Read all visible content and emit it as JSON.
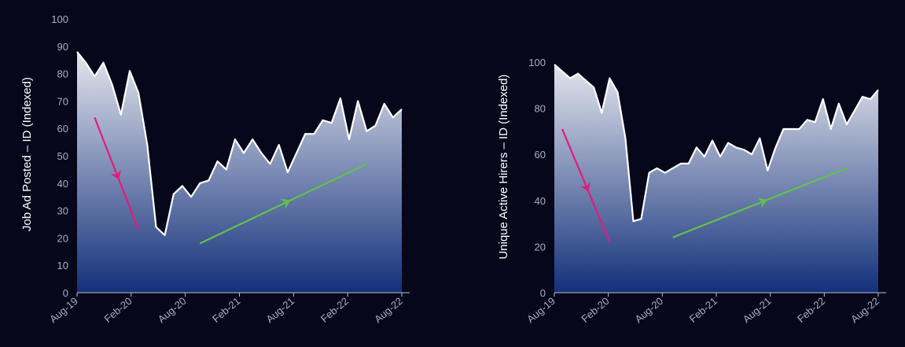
{
  "colors": {
    "background": "#06071a",
    "area_top": "#e4e6ee",
    "area_bottom": "#12307a",
    "line": "#ffffff",
    "axis": "#b9bdd4",
    "tick_text": "#a9aec8",
    "down_arrow": "#e8197a",
    "up_arrow": "#5fc24a"
  },
  "chart_data": [
    {
      "type": "area",
      "ylabel": "Job Ad Posted – ID (Indexed)",
      "xlabel": "",
      "ylim": [
        0,
        100
      ],
      "y_ticks": [
        0,
        10,
        20,
        30,
        40,
        50,
        60,
        70,
        80,
        90,
        100
      ],
      "x_tick_labels": [
        "Aug-19",
        "Feb-20",
        "Aug-20",
        "Feb-21",
        "Aug-21",
        "Feb-22",
        "Aug-22"
      ],
      "grid": false,
      "legend": "none",
      "values": [
        88,
        84,
        79,
        84,
        76,
        65,
        81,
        73,
        54,
        24,
        21,
        36,
        39,
        35,
        40,
        41,
        48,
        45,
        56,
        51,
        56,
        51,
        47,
        54,
        44,
        51,
        58,
        58,
        63,
        62,
        71,
        56,
        70,
        59,
        61,
        69,
        64,
        67
      ],
      "annotations": [
        {
          "kind": "trend-arrow-down",
          "color": "down_arrow",
          "from": [
            2,
            64
          ],
          "to": [
            7,
            23
          ]
        },
        {
          "kind": "trend-arrow-up",
          "color": "up_arrow",
          "from": [
            14,
            18
          ],
          "to": [
            33,
            47
          ]
        }
      ]
    },
    {
      "type": "area",
      "ylabel": "Unique Active Hirers – ID (Indexed)",
      "xlabel": "",
      "ylim": [
        0,
        100
      ],
      "y_ticks": [
        0,
        20,
        40,
        60,
        80,
        100
      ],
      "x_tick_labels": [
        "Aug-19",
        "Feb-20",
        "Aug-20",
        "Feb-21",
        "Aug-21",
        "Feb-22",
        "Aug-22"
      ],
      "grid": false,
      "legend": "none",
      "values": [
        99,
        96,
        93,
        95,
        92,
        89,
        78,
        93,
        87,
        67,
        31,
        32,
        52,
        54,
        52,
        54,
        56,
        56,
        63,
        59,
        66,
        59,
        65,
        63,
        62,
        60,
        67,
        53,
        63,
        71,
        71,
        71,
        75,
        74,
        84,
        71,
        82,
        73,
        79,
        85,
        84,
        88
      ],
      "annotations": [
        {
          "kind": "trend-arrow-down",
          "color": "down_arrow",
          "from": [
            1,
            71
          ],
          "to": [
            7,
            22
          ]
        },
        {
          "kind": "trend-arrow-up",
          "color": "up_arrow",
          "from": [
            15,
            24
          ],
          "to": [
            37,
            54
          ]
        }
      ]
    }
  ]
}
